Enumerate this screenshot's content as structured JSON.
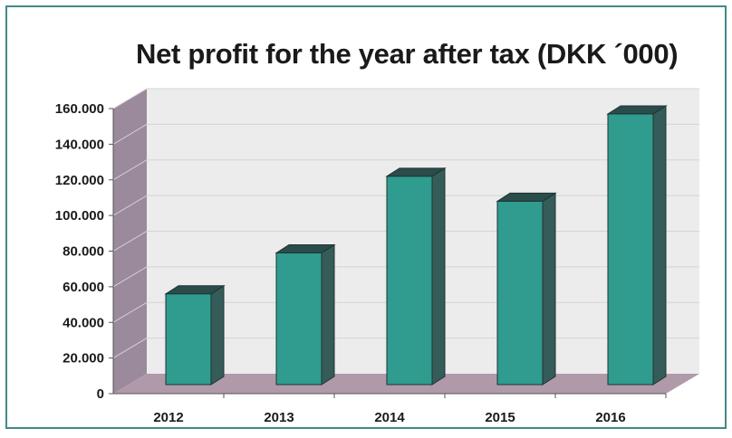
{
  "chart_data": {
    "type": "bar",
    "title": "Net profit for the year after tax (DKK ´000)",
    "categories": [
      "2012",
      "2013",
      "2014",
      "2015",
      "2016"
    ],
    "values": [
      57000,
      80000,
      123000,
      109000,
      158000
    ],
    "yticks": [
      "0",
      "20.000",
      "40.000",
      "60.000",
      "80.000",
      "100.000",
      "120.000",
      "140.000",
      "160.000"
    ],
    "ylim": [
      0,
      160000
    ],
    "grid": true,
    "legend": "none",
    "style": "3d",
    "colors": {
      "bar_front": "#2f9c8f",
      "bar_side": "#355c58",
      "bar_top": "#2a4c4a",
      "back_wall": "#ececec",
      "side_wall": "#9a8a9c",
      "floor": "#b09aaa",
      "frame": "#3f8a8a"
    }
  }
}
